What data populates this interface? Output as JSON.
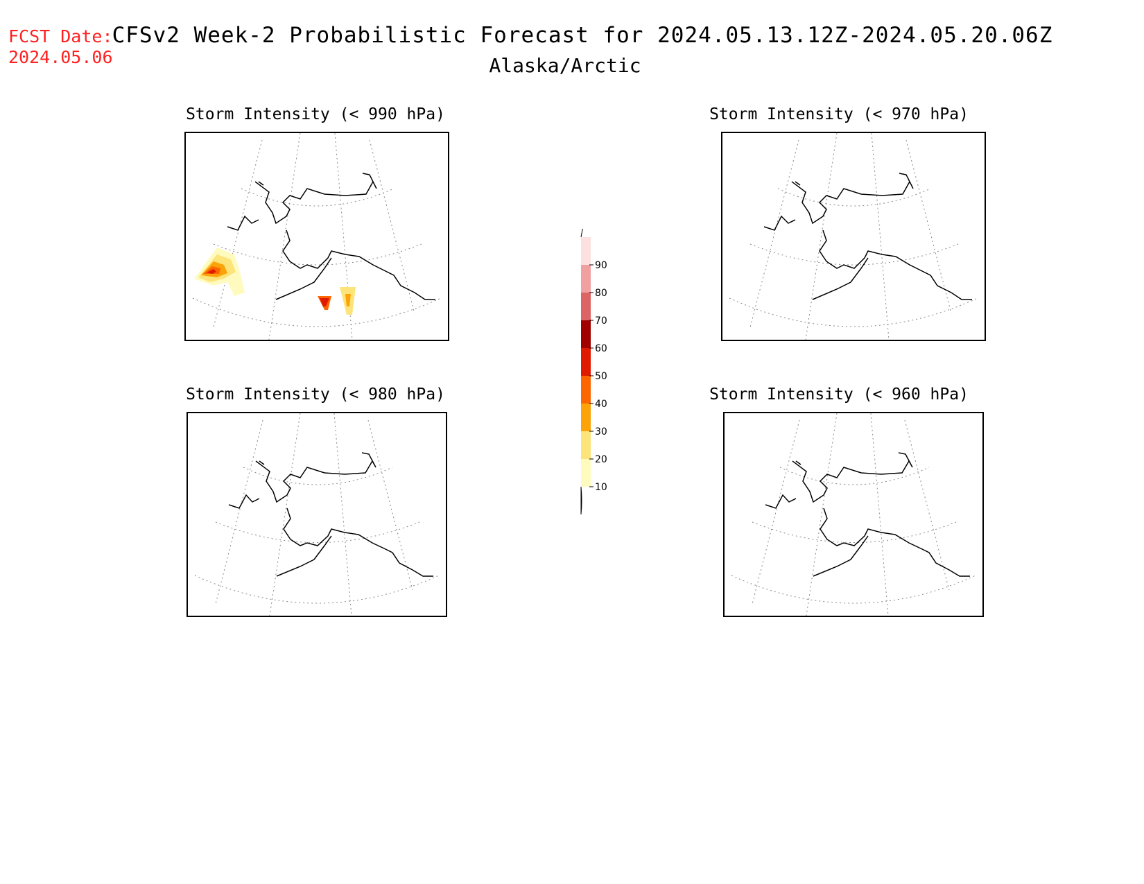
{
  "header": {
    "fcst_label": "FCST Date:",
    "fcst_date": "2024.05.06",
    "title": "CFSv2 Week-2 Probabilistic Forecast for 2024.05.13.12Z-2024.05.20.06Z",
    "subtitle": "Alaska/Arctic"
  },
  "panels": [
    {
      "title": "Storm Intensity (< 990 hPa)",
      "has_probability": true
    },
    {
      "title": "Storm Intensity (< 970 hPa)",
      "has_probability": false
    },
    {
      "title": "Storm Intensity (< 980 hPa)",
      "has_probability": false
    },
    {
      "title": "Storm Intensity (< 960 hPa)",
      "has_probability": false
    }
  ],
  "colorbar": {
    "labels": [
      "10",
      "20",
      "30",
      "40",
      "50",
      "60",
      "70",
      "80",
      "90"
    ],
    "colors": [
      "#fffbbf",
      "#fde47a",
      "#fba308",
      "#fd6500",
      "#e01a00",
      "#a00000",
      "#dc6464",
      "#f0a0a0",
      "#fde0e0"
    ]
  }
}
